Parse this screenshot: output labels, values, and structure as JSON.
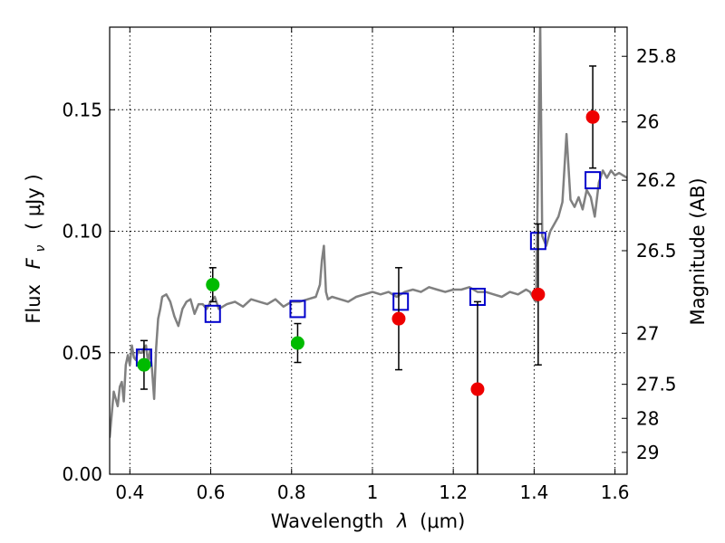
{
  "chart_data": {
    "type": "scatter",
    "xlabel_prefix": "Wavelength",
    "xlabel_var": "λ",
    "xlabel_unit": "(μm)",
    "ylabel_prefix": "Flux",
    "ylabel_var": "F",
    "ylabel_sub": "ν",
    "ylabel_unit": "( μJy )",
    "y2label": "Magnitude (AB)",
    "xlim": [
      0.35,
      1.63
    ],
    "ylim": [
      0.0,
      0.184
    ],
    "grid": true,
    "x_ticks": [
      0.4,
      0.6,
      0.8,
      1.0,
      1.2,
      1.4,
      1.6
    ],
    "x_tick_labels": [
      "0.4",
      "0.6",
      "0.8",
      "1",
      "1.2",
      "1.4",
      "1.6"
    ],
    "y_ticks": [
      0.0,
      0.05,
      0.1,
      0.15
    ],
    "y_tick_labels": [
      "0.00",
      "0.05",
      "0.10",
      "0.15"
    ],
    "y2_ticks": [
      {
        "label": "25.8",
        "flux": 0.172
      },
      {
        "label": "26",
        "flux": 0.145
      },
      {
        "label": "26.2",
        "flux": 0.121
      },
      {
        "label": "26.5",
        "flux": 0.092
      },
      {
        "label": "27",
        "flux": 0.058
      },
      {
        "label": "27.5",
        "flux": 0.037
      },
      {
        "label": "28",
        "flux": 0.023
      },
      {
        "label": "29",
        "flux": 0.009
      }
    ],
    "colors": {
      "model_line": "#808080",
      "model_box": "#0000cc",
      "green": "#00bb00",
      "red": "#ee0000",
      "errorbar": "#000000"
    },
    "series": [
      {
        "kind": "line",
        "x": [
          0.35,
          0.36,
          0.37,
          0.375,
          0.38,
          0.385,
          0.39,
          0.395,
          0.4,
          0.405,
          0.41,
          0.415,
          0.42,
          0.425,
          0.43,
          0.435,
          0.44,
          0.445,
          0.45,
          0.455,
          0.46,
          0.465,
          0.47,
          0.475,
          0.48,
          0.49,
          0.5,
          0.51,
          0.52,
          0.53,
          0.54,
          0.55,
          0.56,
          0.57,
          0.58,
          0.59,
          0.6,
          0.61,
          0.62,
          0.64,
          0.66,
          0.68,
          0.7,
          0.72,
          0.74,
          0.76,
          0.78,
          0.8,
          0.82,
          0.84,
          0.86,
          0.87,
          0.875,
          0.88,
          0.885,
          0.89,
          0.9,
          0.92,
          0.94,
          0.96,
          0.98,
          1.0,
          1.02,
          1.04,
          1.06,
          1.08,
          1.1,
          1.12,
          1.14,
          1.16,
          1.18,
          1.2,
          1.22,
          1.24,
          1.26,
          1.28,
          1.3,
          1.32,
          1.34,
          1.36,
          1.38,
          1.39,
          1.4,
          1.405,
          1.41,
          1.415,
          1.42,
          1.43,
          1.44,
          1.45,
          1.46,
          1.47,
          1.48,
          1.49,
          1.5,
          1.51,
          1.52,
          1.53,
          1.54,
          1.55,
          1.56,
          1.57,
          1.58,
          1.59,
          1.6,
          1.61,
          1.62,
          1.63
        ],
        "y": [
          0.015,
          0.034,
          0.028,
          0.036,
          0.038,
          0.03,
          0.045,
          0.049,
          0.045,
          0.053,
          0.048,
          0.047,
          0.051,
          0.05,
          0.05,
          0.052,
          0.053,
          0.046,
          0.051,
          0.043,
          0.031,
          0.052,
          0.064,
          0.068,
          0.073,
          0.074,
          0.071,
          0.065,
          0.061,
          0.068,
          0.071,
          0.072,
          0.066,
          0.07,
          0.07,
          0.068,
          0.071,
          0.073,
          0.068,
          0.07,
          0.071,
          0.069,
          0.072,
          0.071,
          0.07,
          0.072,
          0.069,
          0.071,
          0.071,
          0.072,
          0.073,
          0.078,
          0.088,
          0.094,
          0.075,
          0.072,
          0.073,
          0.072,
          0.071,
          0.073,
          0.074,
          0.075,
          0.074,
          0.075,
          0.073,
          0.075,
          0.076,
          0.075,
          0.077,
          0.076,
          0.075,
          0.076,
          0.076,
          0.077,
          0.075,
          0.075,
          0.074,
          0.073,
          0.075,
          0.074,
          0.076,
          0.075,
          0.072,
          0.071,
          0.13,
          0.184,
          0.098,
          0.094,
          0.1,
          0.103,
          0.106,
          0.112,
          0.14,
          0.113,
          0.11,
          0.114,
          0.109,
          0.117,
          0.114,
          0.106,
          0.12,
          0.125,
          0.122,
          0.125,
          0.123,
          0.124,
          0.123,
          0.122
        ]
      },
      {
        "kind": "model_boxes",
        "x": [
          0.435,
          0.605,
          0.815,
          1.07,
          1.26,
          1.41,
          1.545
        ],
        "y": [
          0.048,
          0.066,
          0.068,
          0.071,
          0.073,
          0.096,
          0.121
        ]
      },
      {
        "kind": "points",
        "color_key": "green",
        "x": [
          0.435,
          0.605,
          0.815
        ],
        "y": [
          0.045,
          0.078,
          0.054
        ],
        "err_low": [
          0.01,
          0.007,
          0.008
        ],
        "err_high": [
          0.01,
          0.007,
          0.008
        ]
      },
      {
        "kind": "points",
        "color_key": "red",
        "x": [
          1.065,
          1.26,
          1.41,
          1.545
        ],
        "y": [
          0.064,
          0.035,
          0.074,
          0.147
        ],
        "err_low": [
          0.021,
          0.035,
          0.029,
          0.021
        ],
        "err_high": [
          0.021,
          0.036,
          0.029,
          0.021
        ]
      }
    ]
  }
}
